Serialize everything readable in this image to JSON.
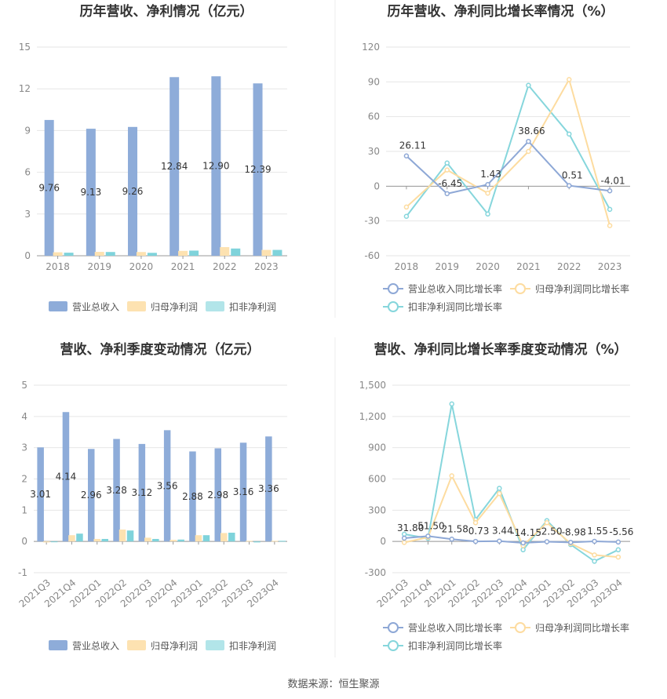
{
  "source": "数据来源：恒生聚源",
  "chart_data": [
    {
      "type": "bar",
      "title": "历年营收、净利情况（亿元）",
      "categories": [
        "2018",
        "2019",
        "2020",
        "2021",
        "2022",
        "2023"
      ],
      "y_ticks": [
        "15",
        "12",
        "9",
        "6",
        "3",
        "0"
      ],
      "ylim": [
        0,
        15
      ],
      "series": [
        {
          "name": "营业总收入",
          "color": "#8eacd9",
          "values": [
            9.76,
            9.13,
            9.26,
            12.84,
            12.9,
            12.39
          ],
          "labels": [
            "9.76",
            "9.13",
            "9.26",
            "12.84",
            "12.90",
            "12.39"
          ]
        },
        {
          "name": "归母净利润",
          "color": "#fde2b1",
          "values": [
            0.25,
            0.28,
            0.27,
            0.35,
            0.62,
            0.42
          ]
        },
        {
          "name": "扣非净利润",
          "color": "#a8e0e6",
          "values": [
            0.22,
            0.27,
            0.21,
            0.37,
            0.52,
            0.42
          ]
        }
      ],
      "bar_colors_solid": [
        "#8eacd9",
        "#fde2b1",
        "#7fd3db"
      ]
    },
    {
      "type": "line",
      "title": "历年营收、净利同比增长率情况（%）",
      "categories": [
        "2018",
        "2019",
        "2020",
        "2021",
        "2022",
        "2023"
      ],
      "y_ticks": [
        "120",
        "90",
        "60",
        "30",
        "0",
        "-30",
        "-60"
      ],
      "ylim": [
        -60,
        120
      ],
      "series": [
        {
          "name": "营业总收入同比增长率",
          "color": "#8ea8d6",
          "values": [
            26.11,
            -6.45,
            1.43,
            38.66,
            0.51,
            -4.01
          ],
          "labels": [
            "26.11",
            "-6.45",
            "1.43",
            "38.66",
            "0.51",
            "-4.01"
          ]
        },
        {
          "name": "归母净利润同比增长率",
          "color": "#fddca0",
          "values": [
            -18,
            14,
            -6,
            30,
            92,
            -34
          ]
        },
        {
          "name": "扣非净利润同比增长率",
          "color": "#86d6dc",
          "values": [
            -26,
            20,
            -24,
            87,
            45,
            -20
          ]
        }
      ]
    },
    {
      "type": "bar",
      "title": "营收、净利季度变动情况（亿元）",
      "categories": [
        "2021Q3",
        "2021Q4",
        "2022Q1",
        "2022Q2",
        "2022Q3",
        "2022Q4",
        "2023Q1",
        "2023Q2",
        "2023Q3",
        "2023Q4"
      ],
      "y_ticks": [
        "5",
        "4",
        "3",
        "2",
        "1",
        "0",
        "-1"
      ],
      "ylim": [
        -1,
        5
      ],
      "series": [
        {
          "name": "营业总收入",
          "color": "#8eacd9",
          "values": [
            3.01,
            4.14,
            2.96,
            3.28,
            3.12,
            3.56,
            2.88,
            2.98,
            3.16,
            3.36
          ],
          "labels": [
            "3.01",
            "4.14",
            "2.96",
            "3.28",
            "3.12",
            "3.56",
            "2.88",
            "2.98",
            "3.16",
            "3.36"
          ]
        },
        {
          "name": "归母净利润",
          "color": "#fde2b1",
          "values": [
            -0.03,
            0.2,
            0.08,
            0.38,
            0.12,
            0.05,
            0.2,
            0.27,
            0.02,
            0.02
          ]
        },
        {
          "name": "扣非净利润",
          "color": "#a8e0e6",
          "values": [
            -0.01,
            0.25,
            0.08,
            0.35,
            0.08,
            0.06,
            0.2,
            0.28,
            -0.03,
            0.02
          ]
        }
      ],
      "bar_colors_solid": [
        "#8eacd9",
        "#fde2b1",
        "#7fd3db"
      ]
    },
    {
      "type": "line",
      "title": "营收、净利同比增长率季度变动情况（%）",
      "categories": [
        "2021Q3",
        "2021Q4",
        "2022Q1",
        "2022Q2",
        "2022Q3",
        "2022Q4",
        "2023Q1",
        "2023Q2",
        "2023Q3",
        "2023Q4"
      ],
      "y_ticks": [
        "1,500",
        "1,200",
        "900",
        "600",
        "300",
        "0",
        "-300"
      ],
      "ylim": [
        -300,
        1500
      ],
      "series": [
        {
          "name": "营业总收入同比增长率",
          "color": "#8ea8d6",
          "values": [
            31.8,
            51.5,
            21.58,
            0.73,
            3.44,
            -14.15,
            -2.5,
            -8.98,
            1.55,
            -5.56
          ],
          "labels": [
            "31.80",
            "51.50",
            "21.58",
            "0.73",
            "3.44",
            "-14.15",
            "-2.50",
            "-8.98",
            "1.55",
            "-5.56"
          ]
        },
        {
          "name": "归母净利润同比增长率",
          "color": "#fddca0",
          "values": [
            -10,
            40,
            630,
            180,
            460,
            -40,
            180,
            -20,
            -130,
            -150
          ]
        },
        {
          "name": "扣非净利润同比增长率",
          "color": "#86d6dc",
          "values": [
            70,
            30,
            1320,
            210,
            510,
            -80,
            200,
            -30,
            -190,
            -80
          ]
        }
      ]
    }
  ]
}
